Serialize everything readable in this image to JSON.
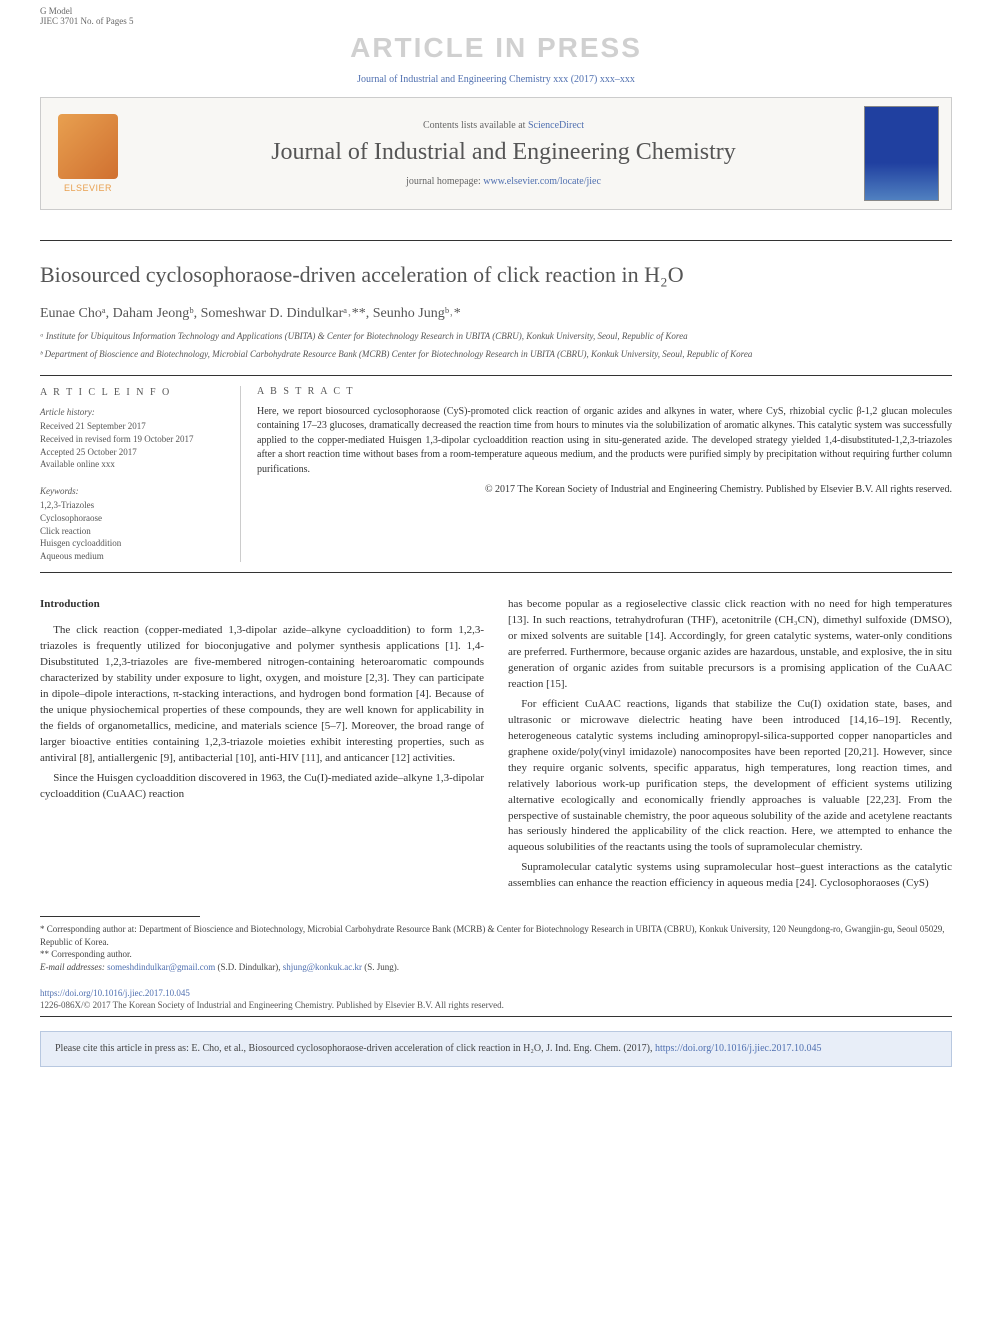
{
  "top": {
    "model": "G Model",
    "ref": "JIEC 3701 No. of Pages 5"
  },
  "watermark": "ARTICLE IN PRESS",
  "citation_line": "Journal of Industrial and Engineering Chemistry xxx (2017) xxx–xxx",
  "header": {
    "contents_prefix": "Contents lists available at ",
    "contents_link": "ScienceDirect",
    "journal_title": "Journal of Industrial and Engineering Chemistry",
    "homepage_prefix": "journal homepage: ",
    "homepage_url": "www.elsevier.com/locate/jiec",
    "elsevier": "ELSEVIER"
  },
  "article": {
    "title": "Biosourced cyclosophoraose-driven acceleration of click reaction in H₂O",
    "authors_html": "Eunae Choᵃ, Daham Jeongᵇ, Someshwar D. Dindulkarᵃ˒**, Seunho Jungᵇ˒*",
    "aff_a": "ᵃ Institute for Ubiquitous Information Technology and Applications (UBITA) & Center for Biotechnology Research in UBITA (CBRU), Konkuk University, Seoul, Republic of Korea",
    "aff_b": "ᵇ Department of Bioscience and Biotechnology, Microbial Carbohydrate Resource Bank (MCRB) Center for Biotechnology Research in UBITA (CBRU), Konkuk University, Seoul, Republic of Korea"
  },
  "info": {
    "heading": "A R T I C L E   I N F O",
    "history_label": "Article history:",
    "received": "Received 21 September 2017",
    "revised": "Received in revised form 19 October 2017",
    "accepted": "Accepted 25 October 2017",
    "online": "Available online xxx",
    "keywords_label": "Keywords:",
    "kw1": "1,2,3-Triazoles",
    "kw2": "Cyclosophoraose",
    "kw3": "Click reaction",
    "kw4": "Huisgen cycloaddition",
    "kw5": "Aqueous medium"
  },
  "abstract": {
    "heading": "A B S T R A C T",
    "text": "Here, we report biosourced cyclosophoraose (CyS)-promoted click reaction of organic azides and alkynes in water, where CyS, rhizobial cyclic β-1,2 glucan molecules containing 17–23 glucoses, dramatically decreased the reaction time from hours to minutes via the solubilization of aromatic alkynes. This catalytic system was successfully applied to the copper-mediated Huisgen 1,3-dipolar cycloaddition reaction using in situ-generated azide. The developed strategy yielded 1,4-disubstituted-1,2,3-triazoles after a short reaction time without bases from a room-temperature aqueous medium, and the products were purified simply by precipitation without requiring further column purifications.",
    "copyright": "© 2017 The Korean Society of Industrial and Engineering Chemistry. Published by Elsevier B.V. All rights reserved."
  },
  "body": {
    "intro_heading": "Introduction",
    "p1": "The click reaction (copper-mediated 1,3-dipolar azide–alkyne cycloaddition) to form 1,2,3-triazoles is frequently utilized for bioconjugative and polymer synthesis applications [1]. 1,4-Disubstituted 1,2,3-triazoles are five-membered nitrogen-containing heteroaromatic compounds characterized by stability under exposure to light, oxygen, and moisture [2,3]. They can participate in dipole–dipole interactions, π-stacking interactions, and hydrogen bond formation [4]. Because of the unique physiochemical properties of these compounds, they are well known for applicability in the fields of organometallics, medicine, and materials science [5–7]. Moreover, the broad range of larger bioactive entities containing 1,2,3-triazole moieties exhibit interesting properties, such as antiviral [8], antiallergenic [9], antibacterial [10], anti-HIV [11], and anticancer [12] activities.",
    "p2": "Since the Huisgen cycloaddition discovered in 1963, the Cu(I)-mediated azide–alkyne 1,3-dipolar cycloaddition (CuAAC) reaction",
    "p3": "has become popular as a regioselective classic click reaction with no need for high temperatures [13]. In such reactions, tetrahydrofuran (THF), acetonitrile (CH₃CN), dimethyl sulfoxide (DMSO), or mixed solvents are suitable [14]. Accordingly, for green catalytic systems, water-only conditions are preferred. Furthermore, because organic azides are hazardous, unstable, and explosive, the in situ generation of organic azides from suitable precursors is a promising application of the CuAAC reaction [15].",
    "p4": "For efficient CuAAC reactions, ligands that stabilize the Cu(I) oxidation state, bases, and ultrasonic or microwave dielectric heating have been introduced [14,16–19]. Recently, heterogeneous catalytic systems including aminopropyl-silica-supported copper nanoparticles and graphene oxide/poly(vinyl imidazole) nanocomposites have been reported [20,21]. However, since they require organic solvents, specific apparatus, high temperatures, long reaction times, and relatively laborious work-up purification steps, the development of efficient systems utilizing alternative ecologically and economically friendly approaches is valuable [22,23]. From the perspective of sustainable chemistry, the poor aqueous solubility of the azide and acetylene reactants has seriously hindered the applicability of the click reaction. Here, we attempted to enhance the aqueous solubilities of the reactants using the tools of supramolecular chemistry.",
    "p5": "Supramolecular catalytic systems using supramolecular host–guest interactions as the catalytic assemblies can enhance the reaction efficiency in aqueous media [24]. Cyclosophoraoses (CyS)"
  },
  "footnotes": {
    "corr1": "* Corresponding author at: Department of Bioscience and Biotechnology, Microbial Carbohydrate Resource Bank (MCRB) & Center for Biotechnology Research in UBITA (CBRU), Konkuk University, 120 Neungdong-ro, Gwangjin-gu, Seoul 05029, Republic of Korea.",
    "corr2": "** Corresponding author.",
    "email_label": "E-mail addresses: ",
    "email1": "someshdindulkar@gmail.com",
    "email1_name": " (S.D. Dindulkar), ",
    "email2": "shjung@konkuk.ac.kr",
    "email2_name": " (S. Jung)."
  },
  "doi": "https://doi.org/10.1016/j.jiec.2017.10.045",
  "bottom_copyright": "1226-086X/© 2017 The Korean Society of Industrial and Engineering Chemistry. Published by Elsevier B.V. All rights reserved.",
  "cite_box": {
    "text_prefix": "Please cite this article in press as: E. Cho, et al., Biosourced cyclosophoraose-driven acceleration of click reaction in H₂O, J. Ind. Eng. Chem. (2017), ",
    "link": "https://doi.org/10.1016/j.jiec.2017.10.045"
  },
  "colors": {
    "link": "#5070b0",
    "watermark": "#d0d0d0",
    "text": "#333333",
    "muted": "#666666",
    "box_bg": "#f8f7f4",
    "cite_bg": "#e8eef8",
    "elsevier_orange": "#e8a050"
  }
}
